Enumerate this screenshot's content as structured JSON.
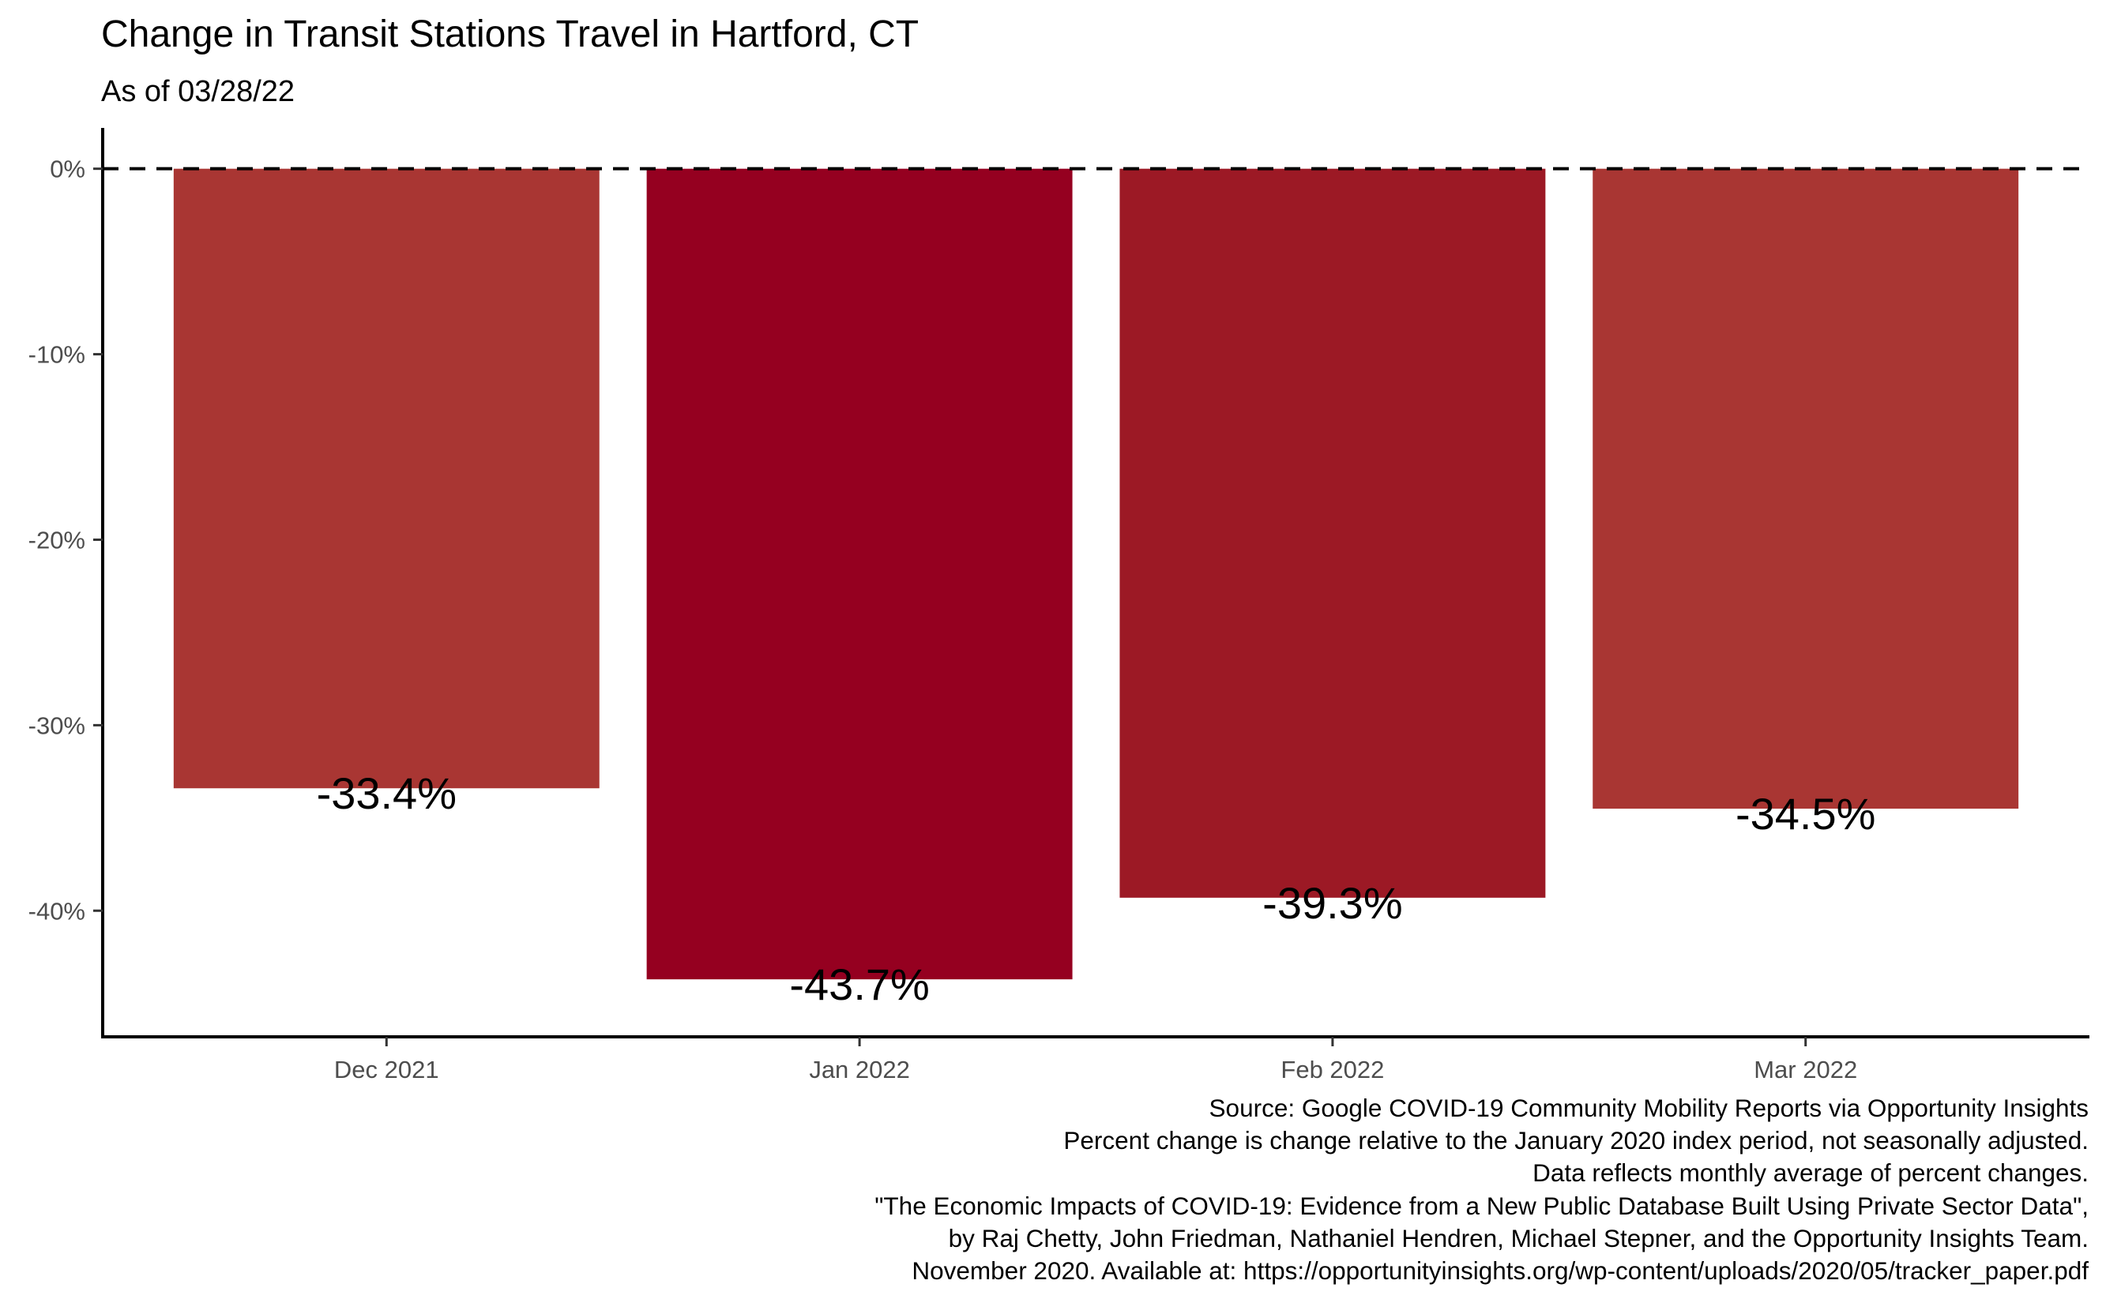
{
  "chart_data": {
    "type": "bar",
    "title": "Change in Transit Stations Travel in Hartford, CT",
    "subtitle": "As of 03/28/22",
    "xlabel": "",
    "ylabel": "",
    "categories": [
      "Dec 2021",
      "Jan 2022",
      "Feb 2022",
      "Mar 2022"
    ],
    "values": [
      -33.4,
      -43.7,
      -39.3,
      -34.5
    ],
    "data_labels": [
      "-33.4%",
      "-43.7%",
      "-39.3%",
      "-34.5%"
    ],
    "bar_colors": [
      "#a93633",
      "#950020",
      "#9c1925",
      "#a93633"
    ],
    "y_ticks": [
      0,
      -10,
      -20,
      -30,
      -40
    ],
    "y_tick_labels": [
      "0%",
      "-10%",
      "-20%",
      "-30%",
      "-40%"
    ],
    "ylim": [
      -46.8,
      2.2
    ],
    "reference_line": {
      "value": 0,
      "style": "dashed"
    },
    "grid": false,
    "legend": "none",
    "caption": [
      "Source: Google COVID-19 Community Mobility Reports via Opportunity Insights",
      "Percent change is change relative to the January 2020 index period, not seasonally adjusted.",
      "Data reflects monthly average of percent changes.",
      "\"The Economic Impacts of COVID-19: Evidence from a New Public Database Built Using Private Sector Data\",",
      "by Raj Chetty, John Friedman, Nathaniel Hendren, Michael Stepner, and the Opportunity Insights Team.",
      "November 2020. Available at: https://opportunityinsights.org/wp-content/uploads/2020/05/tracker_paper.pdf"
    ]
  }
}
